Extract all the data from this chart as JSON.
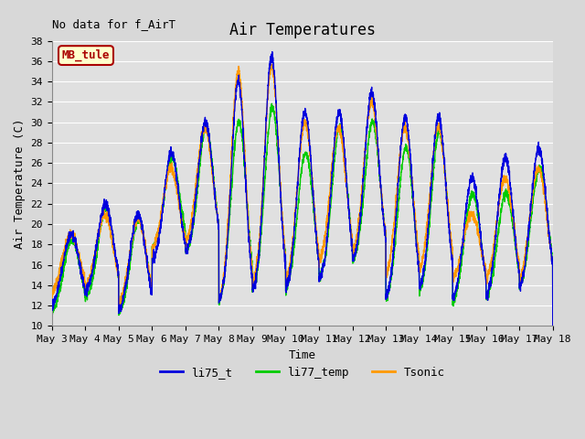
{
  "title": "Air Temperatures",
  "note": "No data for f_AirT",
  "xlabel": "Time",
  "ylabel": "Air Temperature (C)",
  "ylim": [
    10,
    38
  ],
  "yticks": [
    10,
    12,
    14,
    16,
    18,
    20,
    22,
    24,
    26,
    28,
    30,
    32,
    34,
    36,
    38
  ],
  "background_color": "#d8d8d8",
  "plot_bg_color": "#e0e0e0",
  "grid_color": "#ffffff",
  "line_colors": {
    "li75_t": "#0000dd",
    "li77_temp": "#00cc00",
    "Tsonic": "#ff9900"
  },
  "line_widths": {
    "li75_t": 1.0,
    "li77_temp": 1.0,
    "Tsonic": 1.0
  },
  "legend_box": {
    "label": "MB_tule",
    "facecolor": "#ffffcc",
    "edgecolor": "#aa0000",
    "textcolor": "#aa0000"
  },
  "xtick_labels": [
    "May 3",
    "May 4",
    "May 5",
    "May 6",
    "May 7",
    "May 8",
    "May 9",
    "May 10",
    "May 11",
    "May 12",
    "May 13",
    "May 14",
    "May 15",
    "May 16",
    "May 17",
    "May 18"
  ],
  "note_fontsize": 9,
  "title_fontsize": 12,
  "tick_fontsize": 8,
  "axis_label_fontsize": 9,
  "legend_fontsize": 9
}
